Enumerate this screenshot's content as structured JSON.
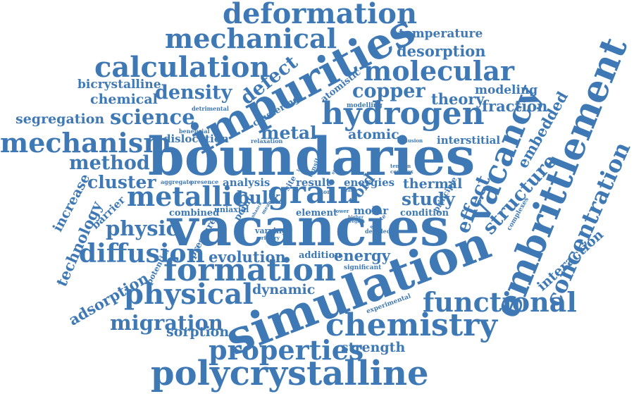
{
  "colors": {
    "word": "#3f79b5",
    "background": "#ffffff"
  },
  "words": {
    "boundaries": "boundaries",
    "vacancies": "vacancies",
    "simulation": "simulation",
    "impurities": "impurities",
    "embrittlement": "embrittlement",
    "hydrogen": "hydrogen",
    "polycrystalline": "polycrystalline",
    "vacancy": "vacancy",
    "formation": "formation",
    "deformation": "deformation",
    "mechanical": "mechanical",
    "calculation": "calculation",
    "molecular": "molecular",
    "grain": "grain",
    "chemistry": "chemistry",
    "concentration": "concentration",
    "metallic": "metallic",
    "mechanism": "mechanism",
    "functional": "functional",
    "physical": "physical",
    "properties": "properties",
    "diffusion": "diffusion",
    "migration": "migration",
    "adsorption": "adsorption",
    "density": "density",
    "science": "science",
    "copper": "copper",
    "structure": "structure",
    "defect": "defect",
    "method": "method",
    "physic": "physic",
    "technology": "technology",
    "interaction": "interaction",
    "desorption": "desorption",
    "temperature": "temperature",
    "theory": "theory",
    "fraction": "fraction",
    "modeling": "modeling",
    "embedded": "embedded",
    "cluster": "cluster",
    "increase": "increase",
    "barrier": "barrier",
    "evolution": "evolution",
    "energy": "energy",
    "dynamic": "dynamic",
    "study": "study",
    "metal": "metal",
    "atomic": "atomic",
    "bulk": "bulk",
    "effect": "effect",
    "void": "void",
    "thermal": "thermal",
    "strength": "strength",
    "sorption": "sorption",
    "chemical": "chemical",
    "bicrystalline": "bicrystalline",
    "segregation": "segregation",
    "dislocation": "dislocation",
    "interstitial": "interstitial",
    "analysis": "analysis",
    "result": "result",
    "energies": "energies",
    "molar": "molar",
    "element": "element",
    "condition": "condition",
    "combined": "combined",
    "uniaxial": "uniaxial",
    "pressure": "pressure",
    "varying": "varying",
    "addition": "addition",
    "potential": "potential",
    "experimental": "experimental",
    "significant": "significant",
    "principle": "principle",
    "complexes": "complexes",
    "clustering": "clustering",
    "modelling": "modelling",
    "atomistic": "atomistic",
    "detrimental": "detrimental",
    "beneficial": "beneficial",
    "relaxation": "relaxation",
    "inclusion": "inclusion",
    "aggregate": "aggregate",
    "presence": "presence",
    "point": "point",
    "detailed": "detailed",
    "primary": "primary",
    "tension": "tension",
    "complex": "complex",
    "solute": "solute",
    "atom": "atom",
    "local": "local",
    "lower": "lower",
    "tensile": "tensile",
    "site": "site",
    "enhance": "enhance",
    "mean": "mean",
    "larger": "larger",
    "smaller": "smaller",
    "higher": "higher",
    "region": "region"
  }
}
